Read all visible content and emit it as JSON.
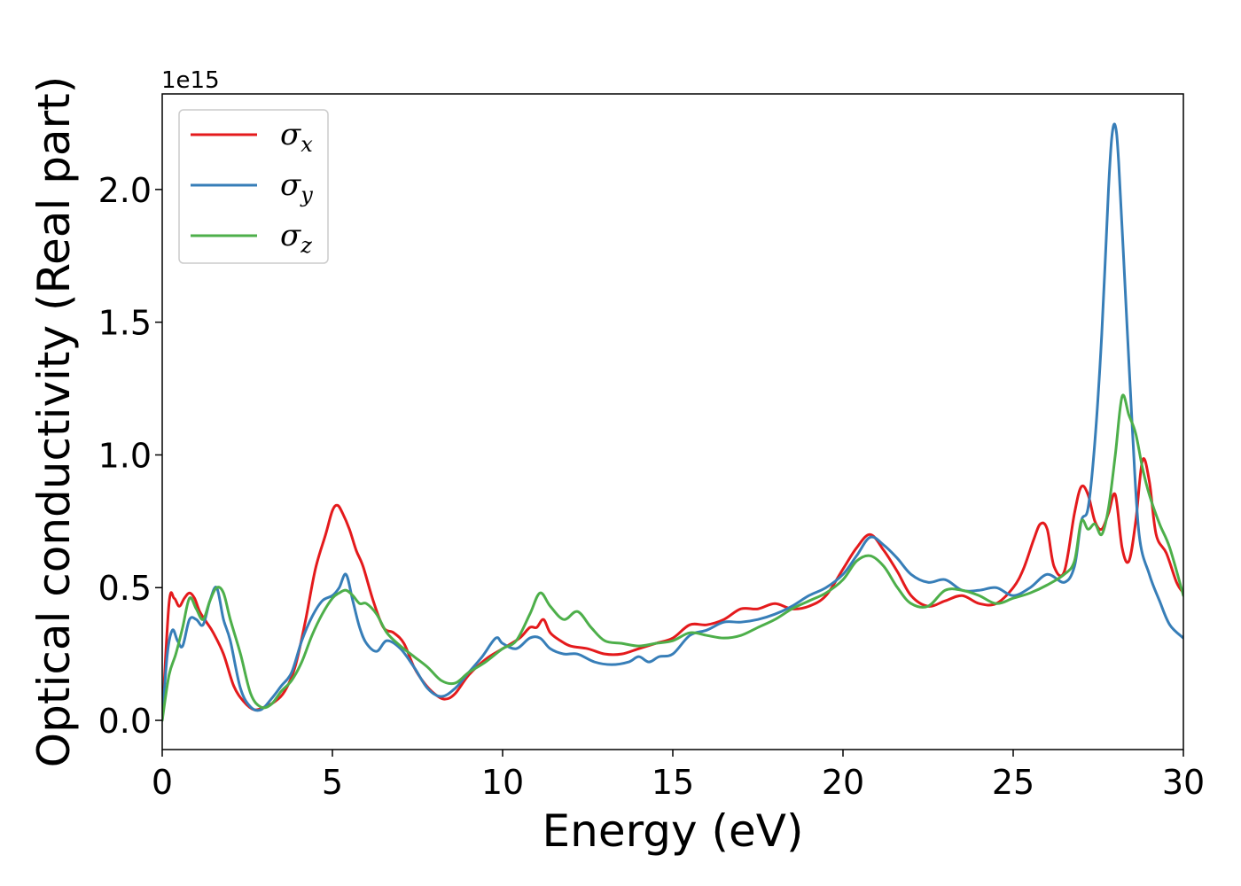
{
  "chart_data": {
    "type": "line",
    "xlabel": "Energy (eV)",
    "ylabel": "Optical conductivity (Real part)",
    "y_offset_label": "1e15",
    "xlim": [
      0,
      30
    ],
    "ylim": [
      -0.11,
      2.36
    ],
    "x_ticks": [
      0,
      5,
      10,
      15,
      20,
      25,
      30
    ],
    "x_tick_labels": [
      "0",
      "5",
      "10",
      "15",
      "20",
      "25",
      "30"
    ],
    "y_ticks": [
      0.0,
      0.5,
      1.0,
      1.5,
      2.0
    ],
    "y_tick_labels": [
      "0.0",
      "0.5",
      "1.0",
      "1.5",
      "2.0"
    ],
    "grid": false,
    "legend_placement": "top-left",
    "series": [
      {
        "name": "σx",
        "symbol": "σ",
        "subscript": "x",
        "color": "#e41a1c",
        "x": [
          0,
          0.2,
          0.35,
          0.5,
          0.65,
          0.8,
          0.95,
          1.1,
          1.3,
          1.5,
          1.8,
          2.1,
          2.4,
          2.7,
          3.0,
          3.3,
          3.6,
          3.9,
          4.2,
          4.5,
          4.8,
          5.0,
          5.15,
          5.3,
          5.5,
          5.7,
          5.9,
          6.2,
          6.5,
          6.8,
          7.1,
          7.4,
          7.7,
          8.0,
          8.3,
          8.6,
          9.0,
          9.5,
          10.0,
          10.5,
          10.8,
          11.0,
          11.2,
          11.4,
          11.7,
          12.0,
          12.5,
          13.0,
          13.5,
          14.0,
          14.5,
          15.0,
          15.5,
          16.0,
          16.5,
          17.0,
          17.5,
          18.0,
          18.5,
          19.0,
          19.5,
          20.0,
          20.4,
          20.8,
          21.2,
          21.6,
          22.0,
          22.5,
          23.0,
          23.5,
          24.0,
          24.5,
          25.0,
          25.3,
          25.6,
          25.8,
          26.0,
          26.2,
          26.5,
          26.8,
          27.0,
          27.2,
          27.4,
          27.6,
          27.8,
          28.0,
          28.2,
          28.4,
          28.6,
          28.8,
          29.0,
          29.2,
          29.5,
          29.8,
          30.0
        ],
        "y": [
          0.0,
          0.44,
          0.46,
          0.43,
          0.46,
          0.48,
          0.46,
          0.41,
          0.37,
          0.33,
          0.25,
          0.13,
          0.07,
          0.04,
          0.05,
          0.07,
          0.11,
          0.2,
          0.37,
          0.57,
          0.7,
          0.79,
          0.81,
          0.78,
          0.72,
          0.64,
          0.58,
          0.45,
          0.35,
          0.33,
          0.29,
          0.2,
          0.14,
          0.1,
          0.08,
          0.1,
          0.17,
          0.23,
          0.27,
          0.31,
          0.35,
          0.35,
          0.38,
          0.33,
          0.3,
          0.28,
          0.27,
          0.25,
          0.25,
          0.27,
          0.29,
          0.31,
          0.36,
          0.36,
          0.38,
          0.42,
          0.42,
          0.44,
          0.42,
          0.43,
          0.47,
          0.57,
          0.65,
          0.7,
          0.64,
          0.56,
          0.47,
          0.43,
          0.45,
          0.47,
          0.44,
          0.44,
          0.5,
          0.57,
          0.68,
          0.74,
          0.72,
          0.58,
          0.56,
          0.78,
          0.88,
          0.85,
          0.75,
          0.72,
          0.78,
          0.85,
          0.65,
          0.6,
          0.75,
          0.98,
          0.9,
          0.7,
          0.63,
          0.52,
          0.48
        ]
      },
      {
        "name": "σy",
        "symbol": "σ",
        "subscript": "y",
        "color": "#377eb8",
        "x": [
          0,
          0.15,
          0.3,
          0.45,
          0.6,
          0.8,
          1.0,
          1.2,
          1.4,
          1.6,
          1.8,
          2.0,
          2.3,
          2.6,
          2.9,
          3.2,
          3.5,
          3.8,
          4.1,
          4.4,
          4.7,
          5.0,
          5.2,
          5.4,
          5.6,
          5.8,
          6.0,
          6.3,
          6.6,
          7.0,
          7.4,
          7.8,
          8.2,
          8.6,
          9.0,
          9.4,
          9.8,
          10.0,
          10.4,
          10.8,
          11.1,
          11.4,
          11.8,
          12.2,
          12.7,
          13.2,
          13.7,
          14.0,
          14.3,
          14.6,
          15.0,
          15.5,
          16.0,
          16.5,
          17.0,
          17.5,
          18.0,
          18.5,
          19.0,
          19.5,
          20.0,
          20.4,
          20.8,
          21.2,
          21.6,
          22.0,
          22.5,
          23.0,
          23.5,
          24.0,
          24.5,
          25.0,
          25.5,
          26.0,
          26.5,
          26.8,
          27.0,
          27.2,
          27.4,
          27.6,
          27.8,
          27.9,
          28.0,
          28.1,
          28.3,
          28.5,
          28.7,
          29.0,
          29.3,
          29.6,
          30.0
        ],
        "y": [
          0.0,
          0.25,
          0.34,
          0.3,
          0.28,
          0.38,
          0.38,
          0.36,
          0.45,
          0.5,
          0.38,
          0.3,
          0.12,
          0.05,
          0.04,
          0.08,
          0.13,
          0.18,
          0.3,
          0.39,
          0.45,
          0.47,
          0.5,
          0.55,
          0.45,
          0.35,
          0.29,
          0.26,
          0.3,
          0.27,
          0.2,
          0.12,
          0.09,
          0.12,
          0.18,
          0.24,
          0.31,
          0.29,
          0.27,
          0.31,
          0.31,
          0.27,
          0.25,
          0.25,
          0.22,
          0.21,
          0.22,
          0.24,
          0.22,
          0.24,
          0.25,
          0.32,
          0.34,
          0.37,
          0.37,
          0.38,
          0.4,
          0.43,
          0.47,
          0.5,
          0.55,
          0.62,
          0.69,
          0.66,
          0.61,
          0.55,
          0.52,
          0.53,
          0.49,
          0.49,
          0.5,
          0.47,
          0.5,
          0.55,
          0.52,
          0.58,
          0.75,
          0.8,
          1.05,
          1.45,
          2.0,
          2.2,
          2.24,
          2.1,
          1.6,
          1.1,
          0.7,
          0.55,
          0.45,
          0.36,
          0.31
        ]
      },
      {
        "name": "σz",
        "symbol": "σ",
        "subscript": "z",
        "color": "#4daf4a",
        "x": [
          0,
          0.2,
          0.4,
          0.6,
          0.8,
          1.0,
          1.2,
          1.4,
          1.6,
          1.8,
          2.0,
          2.3,
          2.6,
          2.9,
          3.2,
          3.5,
          3.8,
          4.1,
          4.4,
          4.7,
          5.0,
          5.2,
          5.4,
          5.6,
          5.8,
          6.0,
          6.3,
          6.6,
          7.0,
          7.4,
          7.8,
          8.2,
          8.6,
          9.0,
          9.5,
          10.0,
          10.4,
          10.8,
          11.1,
          11.4,
          11.8,
          12.2,
          12.6,
          13.0,
          13.5,
          14.0,
          14.5,
          15.0,
          15.5,
          16.0,
          16.5,
          17.0,
          17.5,
          18.0,
          18.5,
          19.0,
          19.5,
          20.0,
          20.4,
          20.8,
          21.2,
          21.6,
          22.0,
          22.5,
          23.0,
          23.5,
          24.0,
          24.5,
          25.0,
          25.5,
          26.0,
          26.5,
          26.8,
          27.0,
          27.2,
          27.4,
          27.6,
          27.8,
          28.0,
          28.2,
          28.4,
          28.6,
          28.8,
          29.0,
          29.3,
          29.6,
          30.0
        ],
        "y": [
          0.0,
          0.17,
          0.25,
          0.35,
          0.46,
          0.42,
          0.38,
          0.45,
          0.5,
          0.48,
          0.38,
          0.25,
          0.1,
          0.05,
          0.06,
          0.11,
          0.15,
          0.22,
          0.32,
          0.4,
          0.46,
          0.48,
          0.49,
          0.47,
          0.44,
          0.44,
          0.4,
          0.33,
          0.28,
          0.24,
          0.2,
          0.15,
          0.14,
          0.18,
          0.22,
          0.27,
          0.3,
          0.4,
          0.48,
          0.43,
          0.38,
          0.41,
          0.35,
          0.3,
          0.29,
          0.28,
          0.29,
          0.3,
          0.33,
          0.32,
          0.31,
          0.32,
          0.35,
          0.38,
          0.42,
          0.45,
          0.48,
          0.53,
          0.6,
          0.62,
          0.58,
          0.5,
          0.44,
          0.43,
          0.49,
          0.49,
          0.47,
          0.44,
          0.46,
          0.48,
          0.51,
          0.55,
          0.6,
          0.75,
          0.72,
          0.74,
          0.7,
          0.8,
          1.0,
          1.22,
          1.15,
          1.08,
          0.95,
          0.85,
          0.74,
          0.65,
          0.47
        ]
      }
    ]
  }
}
